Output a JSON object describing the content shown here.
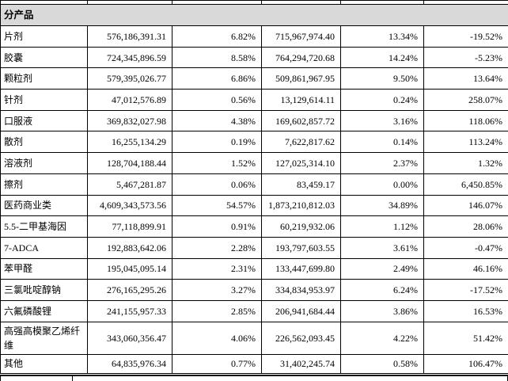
{
  "table": {
    "section_label": "分产品",
    "rows": [
      {
        "name": "片剂",
        "values": [
          "576,186,391.31",
          "6.82%",
          "715,967,974.40",
          "13.34%",
          "-19.52%"
        ]
      },
      {
        "name": "胶囊",
        "values": [
          "724,345,896.59",
          "8.58%",
          "764,294,720.68",
          "14.24%",
          "-5.23%"
        ]
      },
      {
        "name": "颗粒剂",
        "values": [
          "579,395,026.77",
          "6.86%",
          "509,861,967.95",
          "9.50%",
          "13.64%"
        ]
      },
      {
        "name": "针剂",
        "values": [
          "47,012,576.89",
          "0.56%",
          "13,129,614.11",
          "0.24%",
          "258.07%"
        ]
      },
      {
        "name": "口服液",
        "values": [
          "369,832,027.98",
          "4.38%",
          "169,602,857.72",
          "3.16%",
          "118.06%"
        ]
      },
      {
        "name": "散剂",
        "values": [
          "16,255,134.29",
          "0.19%",
          "7,622,817.62",
          "0.14%",
          "113.24%"
        ]
      },
      {
        "name": "溶液剂",
        "values": [
          "128,704,188.44",
          "1.52%",
          "127,025,314.10",
          "2.37%",
          "1.32%"
        ]
      },
      {
        "name": "擦剂",
        "values": [
          "5,467,281.87",
          "0.06%",
          "83,459.17",
          "0.00%",
          "6,450.85%"
        ]
      },
      {
        "name": "医药商业类",
        "values": [
          "4,609,343,573.56",
          "54.57%",
          "1,873,210,812.03",
          "34.89%",
          "146.07%"
        ]
      },
      {
        "name": "5.5-二甲基海因",
        "values": [
          "77,118,899.91",
          "0.91%",
          "60,219,932.06",
          "1.12%",
          "28.06%"
        ]
      },
      {
        "name": "7-ADCA",
        "values": [
          "192,883,642.06",
          "2.28%",
          "193,797,603.55",
          "3.61%",
          "-0.47%"
        ]
      },
      {
        "name": "苯甲醛",
        "values": [
          "195,045,095.14",
          "2.31%",
          "133,447,699.80",
          "2.49%",
          "46.16%"
        ]
      },
      {
        "name": "三氯吡啶醇钠",
        "values": [
          "276,165,295.26",
          "3.27%",
          "334,834,953.97",
          "6.24%",
          "-17.52%"
        ]
      },
      {
        "name": "六氟磷酸锂",
        "values": [
          "241,155,957.33",
          "2.85%",
          "206,941,684.44",
          "3.86%",
          "16.53%"
        ]
      },
      {
        "name": "高强高模聚乙烯纤维",
        "values": [
          "343,060,356.47",
          "4.06%",
          "226,562,093.45",
          "4.22%",
          "51.42%"
        ]
      },
      {
        "name": "其他",
        "values": [
          "64,835,976.34",
          "0.77%",
          "31,402,245.74",
          "0.58%",
          "106.47%"
        ]
      }
    ]
  },
  "colors": {
    "header_bg": "#d9d9d9",
    "border": "#000000",
    "text": "#000000"
  }
}
